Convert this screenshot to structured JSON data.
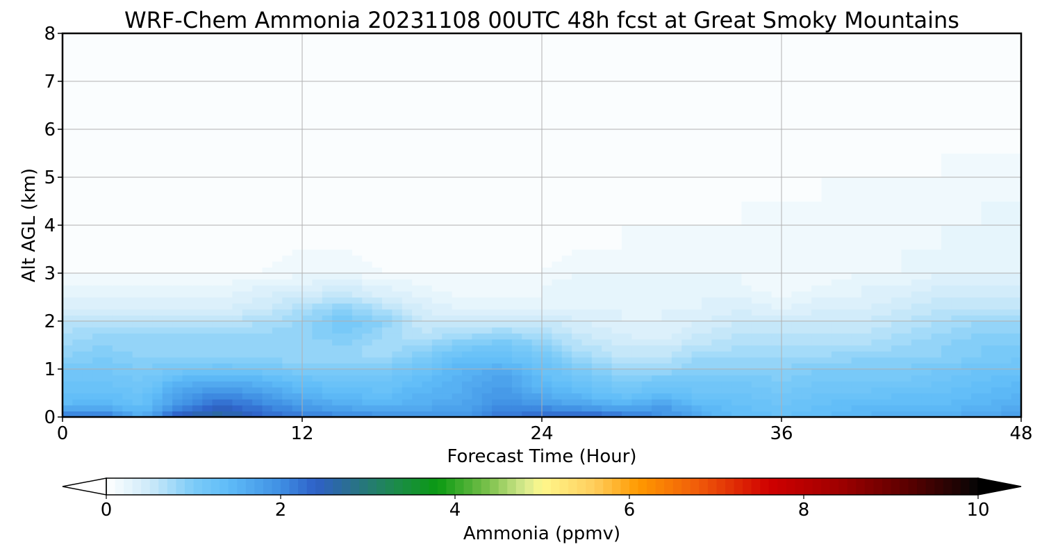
{
  "chart_data": {
    "type": "heatmap",
    "title": "WRF-Chem Ammonia  20231108 00UTC 48h fcst at Great Smoky Mountains",
    "xlabel": "Forecast Time (Hour)",
    "ylabel": "Alt AGL (km)",
    "xlim": [
      0,
      48
    ],
    "ylim": [
      0,
      8
    ],
    "x_ticks": [
      0,
      12,
      24,
      36,
      48
    ],
    "y_ticks": [
      0,
      1,
      2,
      3,
      4,
      5,
      6,
      7,
      8
    ],
    "grid": true,
    "colorbar": {
      "label": "Ammonia  (ppmv)",
      "orientation": "horizontal",
      "position": "bottom",
      "range": [
        0,
        10
      ],
      "ticks": [
        0,
        2,
        4,
        6,
        8,
        10
      ],
      "extend": "both",
      "stops": [
        {
          "v": 0.0,
          "c": "#ffffff"
        },
        {
          "v": 0.5,
          "c": "#cdeaf9"
        },
        {
          "v": 1.0,
          "c": "#7ccbf8"
        },
        {
          "v": 1.4,
          "c": "#5fbcf8"
        },
        {
          "v": 2.0,
          "c": "#3f8fe3"
        },
        {
          "v": 2.4,
          "c": "#2e60c8"
        },
        {
          "v": 2.8,
          "c": "#2a6f8f"
        },
        {
          "v": 3.3,
          "c": "#1d8a4d"
        },
        {
          "v": 3.8,
          "c": "#0a9a12"
        },
        {
          "v": 4.4,
          "c": "#7fc24e"
        },
        {
          "v": 4.8,
          "c": "#d7ea8e"
        },
        {
          "v": 5.0,
          "c": "#fff88c"
        },
        {
          "v": 5.6,
          "c": "#ffcd5c"
        },
        {
          "v": 6.1,
          "c": "#ff9a00"
        },
        {
          "v": 6.8,
          "c": "#f05a0a"
        },
        {
          "v": 7.6,
          "c": "#d00000"
        },
        {
          "v": 8.4,
          "c": "#a00000"
        },
        {
          "v": 9.2,
          "c": "#5a0000"
        },
        {
          "v": 10.0,
          "c": "#050505"
        }
      ]
    },
    "hours": [
      0,
      2,
      4,
      6,
      8,
      10,
      12,
      14,
      16,
      18,
      20,
      22,
      24,
      26,
      28,
      30,
      32,
      34,
      36,
      38,
      40,
      42,
      44,
      46,
      48
    ],
    "levels_km": [
      0,
      0.25,
      0.5,
      0.75,
      1.0,
      1.25,
      1.5,
      1.75,
      2.0,
      2.25,
      2.5,
      2.75,
      3.0,
      3.5,
      4.0,
      4.5,
      5.0,
      5.5,
      6.0,
      7.0,
      8.0
    ],
    "values": [
      [
        2.2,
        2.3,
        1.6,
        2.6,
        2.7,
        2.4,
        2.2,
        2.1,
        2.0,
        1.9,
        1.9,
        2.2,
        2.4,
        2.5,
        2.3,
        2.0,
        1.6,
        1.4,
        1.3,
        1.4,
        1.5,
        1.6,
        1.6,
        1.7,
        1.8
      ],
      [
        1.4,
        1.5,
        1.3,
        2.0,
        2.4,
        2.1,
        1.8,
        1.6,
        1.5,
        1.6,
        1.7,
        2.0,
        1.9,
        1.7,
        1.5,
        1.8,
        1.4,
        1.3,
        1.2,
        1.3,
        1.4,
        1.4,
        1.4,
        1.5,
        1.6
      ],
      [
        1.3,
        1.3,
        1.2,
        1.8,
        2.0,
        1.8,
        1.5,
        1.4,
        1.3,
        1.5,
        1.6,
        1.9,
        1.6,
        1.4,
        1.2,
        1.3,
        1.2,
        1.2,
        1.1,
        1.2,
        1.2,
        1.3,
        1.3,
        1.4,
        1.5
      ],
      [
        1.2,
        1.2,
        1.1,
        1.5,
        1.6,
        1.5,
        1.3,
        1.2,
        1.2,
        1.4,
        1.6,
        1.8,
        1.4,
        1.2,
        1.0,
        1.1,
        1.1,
        1.1,
        1.0,
        1.1,
        1.1,
        1.1,
        1.2,
        1.3,
        1.4
      ],
      [
        1.1,
        1.1,
        1.0,
        1.1,
        1.2,
        1.1,
        1.0,
        1.0,
        1.0,
        1.2,
        1.5,
        1.6,
        1.3,
        1.0,
        0.8,
        0.8,
        0.9,
        0.9,
        0.9,
        1.0,
        1.0,
        1.0,
        1.1,
        1.2,
        1.2
      ],
      [
        0.9,
        1.0,
        0.9,
        0.9,
        0.9,
        0.9,
        0.8,
        0.8,
        0.8,
        1.0,
        1.3,
        1.3,
        1.1,
        0.8,
        0.6,
        0.6,
        0.8,
        0.8,
        0.8,
        0.8,
        0.9,
        0.9,
        0.9,
        1.0,
        1.1
      ],
      [
        0.8,
        0.9,
        0.8,
        0.8,
        0.8,
        0.8,
        0.8,
        0.9,
        0.7,
        0.8,
        1.0,
        1.1,
        0.9,
        0.6,
        0.5,
        0.5,
        0.6,
        0.7,
        0.7,
        0.7,
        0.7,
        0.8,
        0.9,
        1.0,
        1.0
      ],
      [
        0.7,
        0.8,
        0.8,
        0.8,
        0.8,
        0.8,
        0.9,
        1.0,
        0.8,
        0.6,
        0.7,
        0.8,
        0.7,
        0.5,
        0.4,
        0.3,
        0.5,
        0.6,
        0.6,
        0.6,
        0.6,
        0.7,
        0.8,
        0.9,
        0.9
      ],
      [
        0.6,
        0.6,
        0.6,
        0.6,
        0.6,
        0.7,
        0.8,
        1.1,
        0.9,
        0.5,
        0.5,
        0.5,
        0.5,
        0.4,
        0.3,
        0.3,
        0.4,
        0.5,
        0.5,
        0.5,
        0.5,
        0.6,
        0.7,
        0.8,
        0.8
      ],
      [
        0.4,
        0.4,
        0.4,
        0.4,
        0.4,
        0.5,
        0.7,
        0.9,
        0.7,
        0.4,
        0.3,
        0.3,
        0.3,
        0.3,
        0.3,
        0.3,
        0.3,
        0.4,
        0.3,
        0.4,
        0.4,
        0.5,
        0.6,
        0.6,
        0.6
      ],
      [
        0.3,
        0.3,
        0.3,
        0.3,
        0.3,
        0.4,
        0.5,
        0.6,
        0.4,
        0.3,
        0.2,
        0.2,
        0.2,
        0.3,
        0.3,
        0.3,
        0.3,
        0.3,
        0.2,
        0.3,
        0.3,
        0.4,
        0.5,
        0.5,
        0.5
      ],
      [
        0.2,
        0.2,
        0.2,
        0.2,
        0.2,
        0.3,
        0.3,
        0.4,
        0.3,
        0.2,
        0.1,
        0.1,
        0.2,
        0.3,
        0.2,
        0.2,
        0.3,
        0.2,
        0.1,
        0.2,
        0.3,
        0.3,
        0.4,
        0.4,
        0.4
      ],
      [
        0.1,
        0.1,
        0.1,
        0.1,
        0.1,
        0.1,
        0.2,
        0.2,
        0.1,
        0.1,
        0.1,
        0.1,
        0.1,
        0.2,
        0.2,
        0.2,
        0.2,
        0.2,
        0.1,
        0.1,
        0.2,
        0.2,
        0.3,
        0.3,
        0.3
      ],
      [
        0.0,
        0.0,
        0.0,
        0.0,
        0.0,
        0.0,
        0.1,
        0.1,
        0.0,
        0.0,
        0.0,
        0.0,
        0.0,
        0.1,
        0.1,
        0.1,
        0.1,
        0.1,
        0.1,
        0.1,
        0.1,
        0.2,
        0.2,
        0.2,
        0.3
      ],
      [
        0.0,
        0.0,
        0.0,
        0.0,
        0.0,
        0.0,
        0.0,
        0.0,
        0.0,
        0.0,
        0.0,
        0.0,
        0.0,
        0.0,
        0.1,
        0.1,
        0.1,
        0.1,
        0.1,
        0.1,
        0.1,
        0.1,
        0.2,
        0.2,
        0.2
      ],
      [
        0.0,
        0.0,
        0.0,
        0.0,
        0.0,
        0.0,
        0.0,
        0.0,
        0.0,
        0.0,
        0.0,
        0.0,
        0.0,
        0.0,
        0.0,
        0.0,
        0.0,
        0.1,
        0.1,
        0.1,
        0.1,
        0.1,
        0.1,
        0.2,
        0.2
      ],
      [
        0.0,
        0.0,
        0.0,
        0.0,
        0.0,
        0.0,
        0.0,
        0.0,
        0.0,
        0.0,
        0.0,
        0.0,
        0.0,
        0.0,
        0.0,
        0.0,
        0.0,
        0.0,
        0.0,
        0.1,
        0.1,
        0.1,
        0.1,
        0.1,
        0.1
      ],
      [
        0.0,
        0.0,
        0.0,
        0.0,
        0.0,
        0.0,
        0.0,
        0.0,
        0.0,
        0.0,
        0.0,
        0.0,
        0.0,
        0.0,
        0.0,
        0.0,
        0.0,
        0.0,
        0.0,
        0.0,
        0.0,
        0.0,
        0.1,
        0.1,
        0.1
      ],
      [
        0.0,
        0.0,
        0.0,
        0.0,
        0.0,
        0.0,
        0.0,
        0.0,
        0.0,
        0.0,
        0.0,
        0.0,
        0.0,
        0.0,
        0.0,
        0.0,
        0.0,
        0.0,
        0.0,
        0.0,
        0.0,
        0.0,
        0.0,
        0.0,
        0.0
      ],
      [
        0.0,
        0.0,
        0.0,
        0.0,
        0.0,
        0.0,
        0.0,
        0.0,
        0.0,
        0.0,
        0.0,
        0.0,
        0.0,
        0.0,
        0.0,
        0.0,
        0.0,
        0.0,
        0.0,
        0.0,
        0.0,
        0.0,
        0.0,
        0.0,
        0.0
      ],
      [
        0.0,
        0.0,
        0.0,
        0.0,
        0.0,
        0.0,
        0.0,
        0.0,
        0.0,
        0.0,
        0.0,
        0.0,
        0.0,
        0.0,
        0.0,
        0.0,
        0.0,
        0.0,
        0.0,
        0.0,
        0.0,
        0.0,
        0.0,
        0.0,
        0.0
      ]
    ]
  }
}
